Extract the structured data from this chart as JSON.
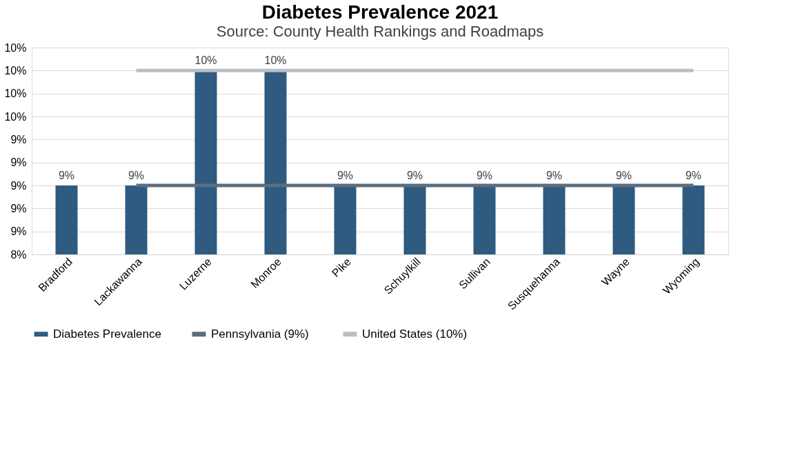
{
  "chart_data": {
    "type": "bar",
    "title": "Diabetes Prevalence 2021",
    "subtitle": "Source: County Health Rankings and Roadmaps",
    "categories": [
      "Bradford",
      "Lackawanna",
      "Luzerne",
      "Monroe",
      "Pike",
      "Schuylkill",
      "Sullivan",
      "Susquehanna",
      "Wayne",
      "Wyoming"
    ],
    "series": [
      {
        "name": "Diabetes Prevalence",
        "color": "#2e5b7f",
        "values": [
          9.0,
          9.0,
          10.0,
          10.0,
          9.0,
          9.0,
          9.0,
          9.0,
          9.0,
          9.0
        ],
        "value_labels": [
          "9%",
          "9%",
          "10%",
          "10%",
          "9%",
          "9%",
          "9%",
          "9%",
          "9%",
          "9%"
        ]
      },
      {
        "name": "Pennsylvania  (9%)",
        "type": "line",
        "color": "#5a6e7f",
        "values": [
          null,
          9.0,
          9.0,
          9.0,
          9.0,
          9.0,
          9.0,
          9.0,
          9.0,
          9.0
        ]
      },
      {
        "name": "United States (10%)",
        "type": "line",
        "color": "#b8bfc6",
        "values": [
          null,
          10.0,
          10.0,
          10.0,
          10.0,
          10.0,
          10.0,
          10.0,
          10.0,
          10.0
        ]
      }
    ],
    "ylim": [
      8.4,
      10.2
    ],
    "yticks": [
      {
        "value": 8.4,
        "label": "8%"
      },
      {
        "value": 8.6,
        "label": "9%"
      },
      {
        "value": 8.8,
        "label": "9%"
      },
      {
        "value": 9.0,
        "label": "9%"
      },
      {
        "value": 9.2,
        "label": "9%"
      },
      {
        "value": 9.4,
        "label": "9%"
      },
      {
        "value": 9.6,
        "label": "10%"
      },
      {
        "value": 9.8,
        "label": "10%"
      },
      {
        "value": 10.0,
        "label": "10%"
      },
      {
        "value": 10.2,
        "label": "10%"
      }
    ],
    "grid": "y",
    "legend": "bottom"
  }
}
